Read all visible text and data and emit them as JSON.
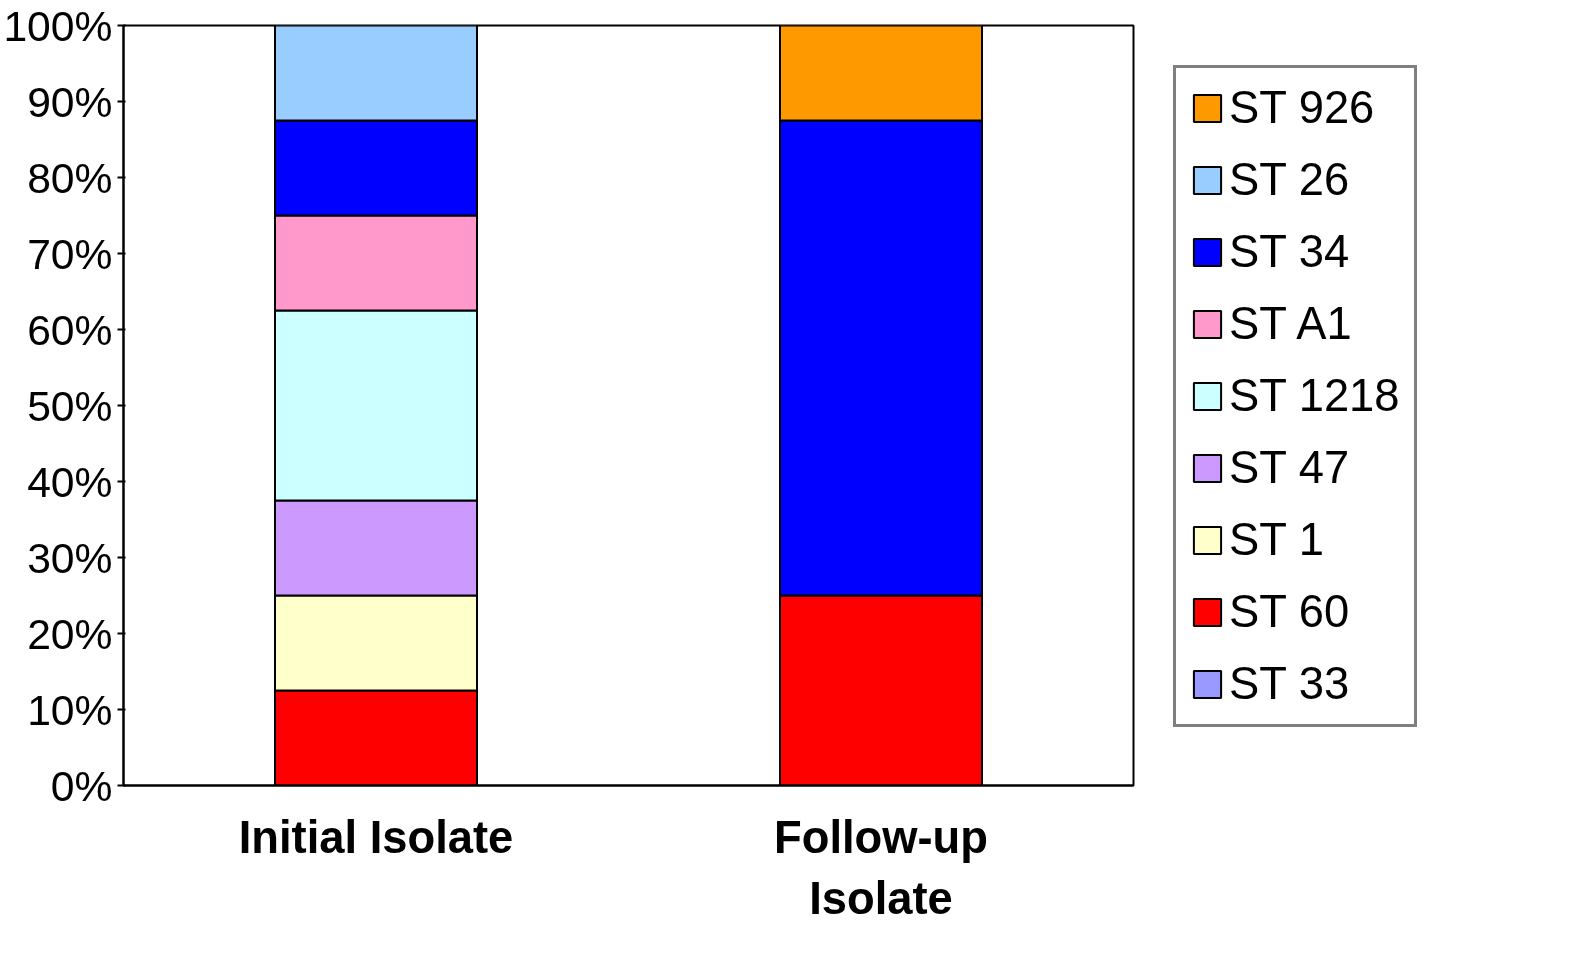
{
  "chart_data": {
    "type": "bar",
    "stacked": true,
    "categories": [
      "Initial Isolate",
      "Follow-up\nIsolate"
    ],
    "ylim": [
      0,
      100
    ],
    "yticks": [
      {
        "value": 0,
        "label": "0%"
      },
      {
        "value": 10,
        "label": "10%"
      },
      {
        "value": 20,
        "label": "20%"
      },
      {
        "value": 30,
        "label": "30%"
      },
      {
        "value": 40,
        "label": "40%"
      },
      {
        "value": 50,
        "label": "50%"
      },
      {
        "value": 60,
        "label": "60%"
      },
      {
        "value": 70,
        "label": "70%"
      },
      {
        "value": 80,
        "label": "80%"
      },
      {
        "value": 90,
        "label": "90%"
      },
      {
        "value": 100,
        "label": "100%"
      }
    ],
    "grid": false,
    "legend": "right",
    "series": [
      {
        "name": "ST 33",
        "color": "#9999ff",
        "values": [
          null,
          null
        ]
      },
      {
        "name": "ST 60",
        "color": "#ff0000",
        "values": [
          12.5,
          25
        ]
      },
      {
        "name": "ST 1",
        "color": "#ffffcc",
        "values": [
          12.5,
          null
        ]
      },
      {
        "name": "ST 47",
        "color": "#cc99ff",
        "values": [
          12.5,
          null
        ]
      },
      {
        "name": "ST 1218",
        "color": "#ccffff",
        "values": [
          25,
          null
        ]
      },
      {
        "name": "ST A1",
        "color": "#ff99cc",
        "values": [
          12.5,
          null
        ]
      },
      {
        "name": "ST 34",
        "color": "#0000ff",
        "values": [
          12.5,
          62.5
        ]
      },
      {
        "name": "ST 26",
        "color": "#99ccff",
        "values": [
          12.5,
          null
        ]
      },
      {
        "name": "ST 926",
        "color": "#ff9900",
        "values": [
          null,
          12.5
        ]
      }
    ]
  }
}
